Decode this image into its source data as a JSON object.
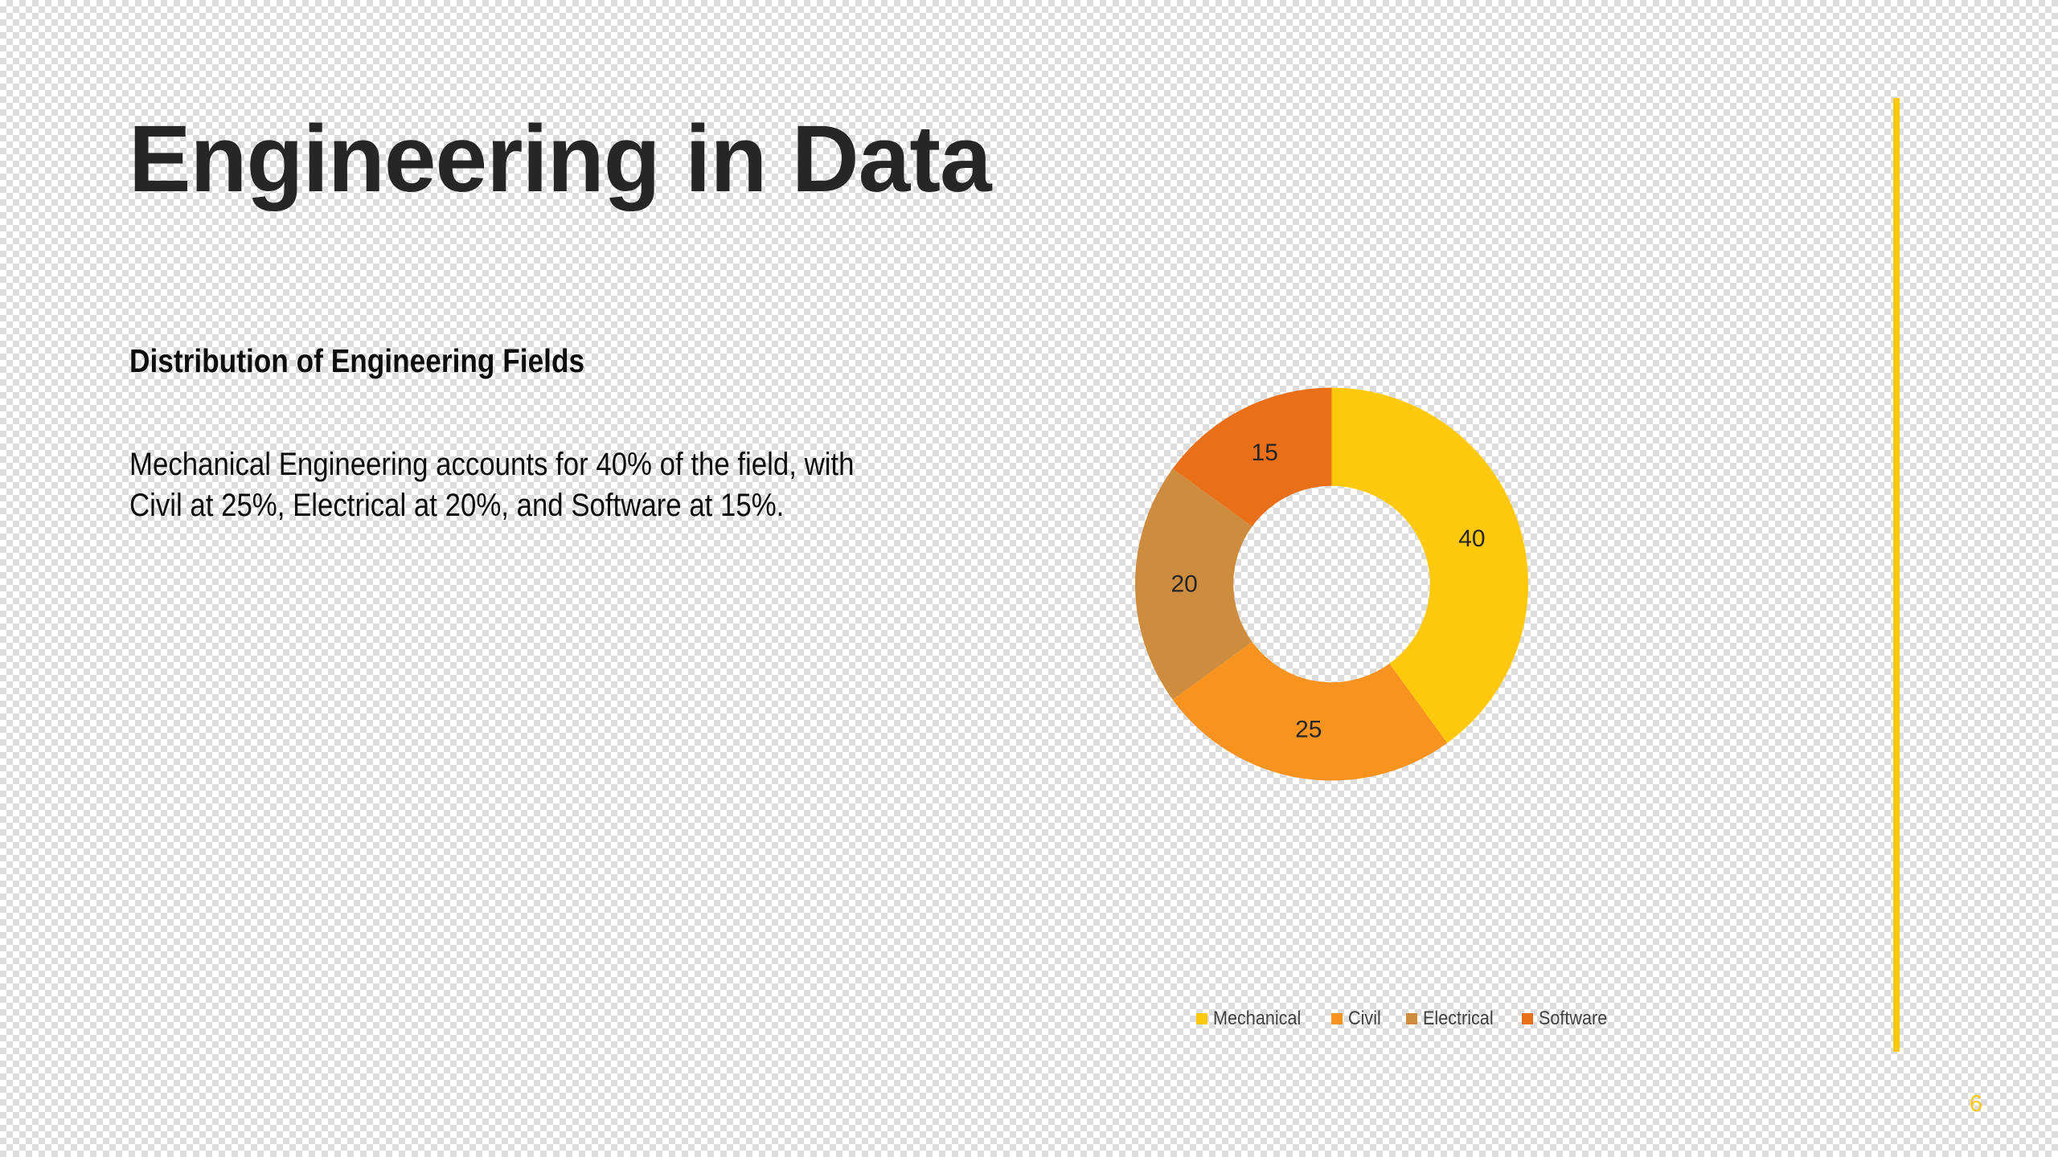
{
  "slide": {
    "title": "Engineering in Data",
    "subtitle": "Distribution of Engineering Fields",
    "body": "Mechanical Engineering accounts for 40% of the field, with Civil at 25%, Electrical at 20%, and Software at 15%.",
    "page_number": "6",
    "accent_color": "#FFC90B"
  },
  "chart_data": {
    "type": "pie",
    "variant": "donut",
    "title": "",
    "categories": [
      "Mechanical",
      "Civil",
      "Electrical",
      "Software"
    ],
    "values": [
      40,
      25,
      20,
      15
    ],
    "data_labels": [
      "40",
      "25",
      "20",
      "15"
    ],
    "colors": [
      "#FFC90B",
      "#F7931E",
      "#CE8D3E",
      "#EA6F19"
    ],
    "hole_fraction": 0.5,
    "start_angle_deg": 0,
    "direction": "clockwise",
    "legend_position": "bottom"
  }
}
